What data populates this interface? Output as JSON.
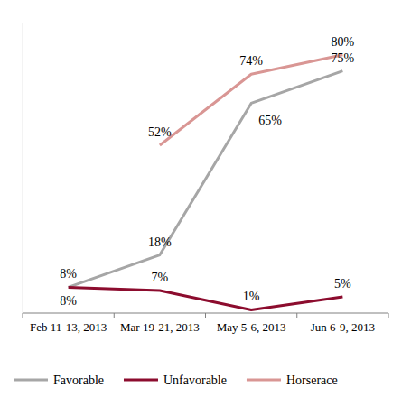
{
  "chart_data": {
    "type": "line",
    "categories": [
      "Feb 11-13, 2013",
      "Mar 19-21, 2013",
      "May 5-6, 2013",
      "Jun 6-9, 2013"
    ],
    "series": [
      {
        "name": "Favorable",
        "color": "#a6a6a6",
        "values": [
          8,
          18,
          65,
          75
        ],
        "value_labels": [
          "8%",
          "18%",
          "65%",
          "75%"
        ]
      },
      {
        "name": "Unfavorable",
        "color": "#8c0c2e",
        "values": [
          8,
          7,
          1,
          5
        ],
        "value_labels": [
          "8%",
          "7%",
          "1%",
          "5%"
        ]
      },
      {
        "name": "Horserace",
        "color": "#d99694",
        "values": [
          null,
          52,
          74,
          80
        ],
        "value_labels": [
          null,
          "52%",
          "74%",
          "80%"
        ]
      }
    ],
    "ylim": [
      0,
      90
    ],
    "grid": false,
    "legend": "bottom",
    "data_labels": true,
    "tick_labels": "x"
  }
}
